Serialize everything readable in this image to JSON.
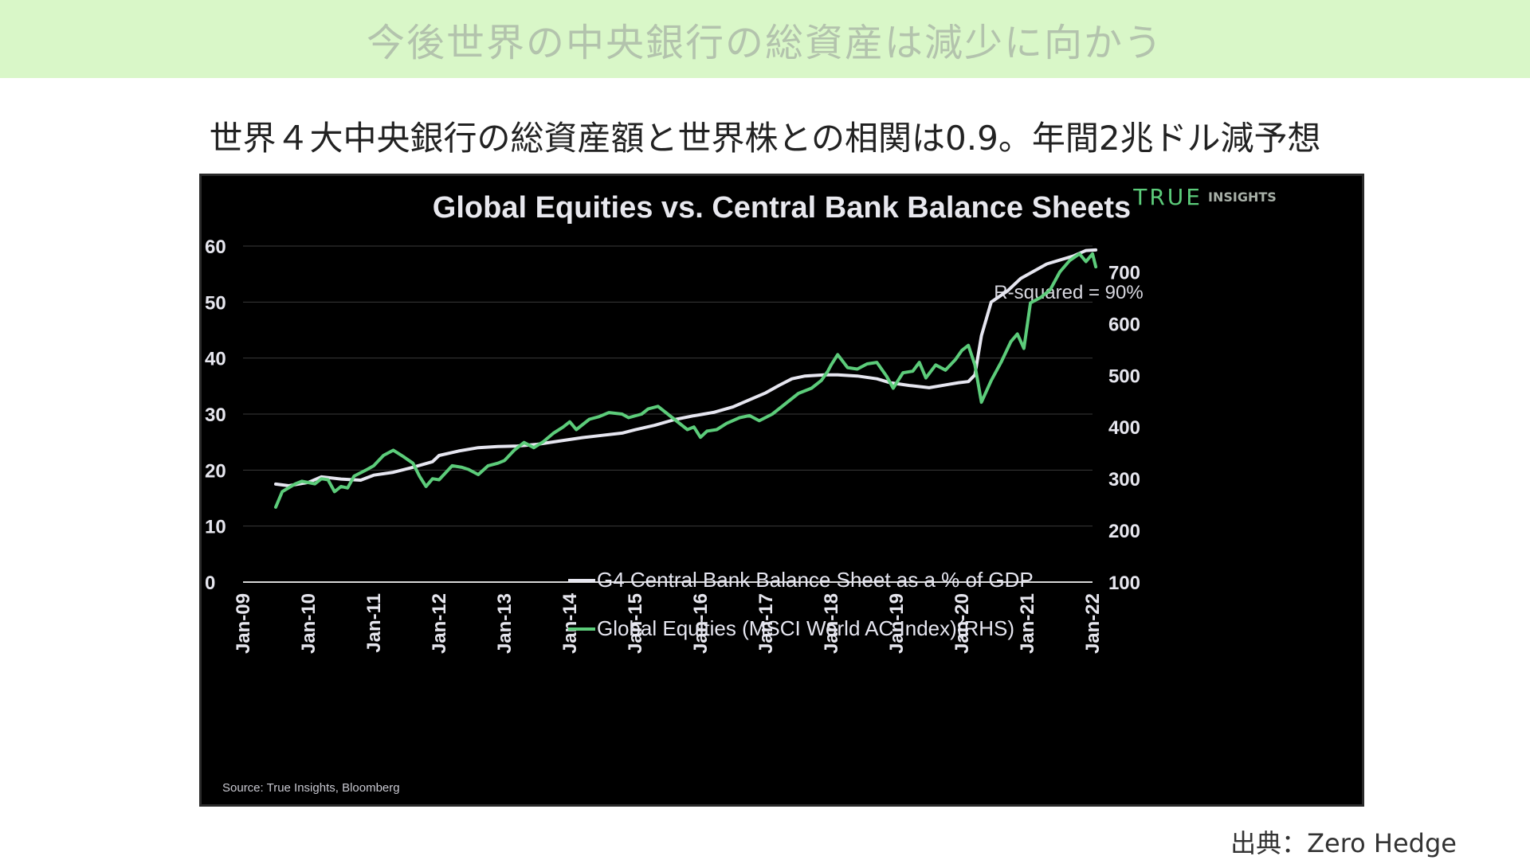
{
  "header": {
    "banner_title": "今後世界の中央銀行の総資産は減少に向かう",
    "subtitle": "世界４大中央銀行の総資産額と世界株との相関は0.9。年間2兆ドル減予想"
  },
  "footer": {
    "credit": "出典：Zero Hedge"
  },
  "colors": {
    "banner_bg": "#d9f7c8",
    "chart_bg": "#000000",
    "balance_sheet_line": "#e6e6f0",
    "equities_line": "#5ccc7a",
    "brand": "#5ccc7a"
  },
  "chart_data": {
    "type": "line",
    "title": "Global Equities vs. Central Bank Balance Sheets",
    "brand": {
      "word": "TRUE",
      "suffix": "INSIGHTS"
    },
    "annotation": "R-squared = 90%",
    "source": "Source: True Insights, Bloomberg",
    "x_tick_labels": [
      "Jan-09",
      "Jan-10",
      "Jan-11",
      "Jan-12",
      "Jan-13",
      "Jan-14",
      "Jan-15",
      "Jan-16",
      "Jan-17",
      "Jan-18",
      "Jan-19",
      "Jan-20",
      "Jan-21",
      "Jan-22"
    ],
    "x_range": [
      2009.0,
      2022.0
    ],
    "left_axis": {
      "ylim": [
        0,
        60
      ],
      "ticks": [
        "0",
        "10",
        "20",
        "30",
        "40",
        "50",
        "60"
      ]
    },
    "right_axis": {
      "ylim": [
        100,
        750
      ],
      "ticks": [
        "100",
        "200",
        "300",
        "400",
        "500",
        "600",
        "700"
      ]
    },
    "grid": true,
    "legend_position": "bottom-center",
    "series": [
      {
        "name": "G4 Central Bank Balance Sheet as a % of GDP",
        "axis": "left",
        "x": [
          2009.5,
          2009.7,
          2010.0,
          2010.2,
          2010.5,
          2010.8,
          2011.0,
          2011.3,
          2011.6,
          2011.9,
          2012.0,
          2012.3,
          2012.6,
          2012.9,
          2013.2,
          2013.5,
          2013.9,
          2014.2,
          2014.5,
          2014.8,
          2015.0,
          2015.3,
          2015.6,
          2015.9,
          2016.2,
          2016.5,
          2016.8,
          2017.0,
          2017.2,
          2017.4,
          2017.6,
          2017.9,
          2018.1,
          2018.4,
          2018.7,
          2018.9,
          2019.2,
          2019.5,
          2019.8,
          2019.95,
          2020.1,
          2020.2,
          2020.3,
          2020.45,
          2020.7,
          2020.9,
          2021.1,
          2021.3,
          2021.5,
          2021.7,
          2021.9,
          2022.05
        ],
        "values": [
          17.5,
          17.2,
          17.8,
          18.8,
          18.4,
          18.2,
          19.1,
          19.6,
          20.5,
          21.5,
          22.6,
          23.4,
          24.0,
          24.2,
          24.3,
          24.6,
          25.3,
          25.8,
          26.2,
          26.6,
          27.2,
          28.0,
          29.0,
          29.7,
          30.3,
          31.3,
          32.8,
          33.8,
          35.1,
          36.3,
          36.8,
          37.0,
          37.0,
          36.8,
          36.3,
          35.6,
          35.1,
          34.7,
          35.3,
          35.6,
          35.8,
          37.0,
          44.0,
          50.0,
          52.0,
          54.2,
          55.5,
          56.8,
          57.5,
          58.2,
          59.2,
          59.3
        ]
      },
      {
        "name": "Global Equities (MSCI World AC Index)(RHS)",
        "axis": "right",
        "x": [
          2009.5,
          2009.6,
          2009.8,
          2009.9,
          2010.1,
          2010.2,
          2010.3,
          2010.4,
          2010.5,
          2010.6,
          2010.7,
          2010.9,
          2011.0,
          2011.15,
          2011.3,
          2011.45,
          2011.6,
          2011.7,
          2011.8,
          2011.9,
          2012.0,
          2012.2,
          2012.35,
          2012.45,
          2012.6,
          2012.75,
          2012.9,
          2013.0,
          2013.15,
          2013.3,
          2013.45,
          2013.6,
          2013.75,
          2013.9,
          2014.0,
          2014.1,
          2014.3,
          2014.45,
          2014.6,
          2014.8,
          2014.9,
          2015.1,
          2015.2,
          2015.35,
          2015.5,
          2015.6,
          2015.8,
          2015.9,
          2016.0,
          2016.1,
          2016.25,
          2016.4,
          2016.6,
          2016.75,
          2016.9,
          2017.1,
          2017.3,
          2017.5,
          2017.7,
          2017.85,
          2017.95,
          2018.0,
          2018.1,
          2018.25,
          2018.4,
          2018.55,
          2018.7,
          2018.85,
          2018.95,
          2019.1,
          2019.25,
          2019.35,
          2019.45,
          2019.6,
          2019.75,
          2019.9,
          2020.0,
          2020.1,
          2020.2,
          2020.3,
          2020.45,
          2020.6,
          2020.75,
          2020.85,
          2020.95,
          2021.05,
          2021.2,
          2021.35,
          2021.5,
          2021.65,
          2021.8,
          2021.9,
          2022.0,
          2022.05
        ],
        "values": [
          245,
          275,
          290,
          295,
          290,
          300,
          298,
          275,
          285,
          282,
          305,
          318,
          325,
          345,
          355,
          343,
          330,
          305,
          285,
          300,
          298,
          325,
          322,
          318,
          308,
          325,
          330,
          335,
          355,
          370,
          360,
          372,
          388,
          400,
          410,
          395,
          415,
          420,
          428,
          425,
          418,
          425,
          435,
          440,
          425,
          415,
          395,
          400,
          380,
          392,
          395,
          407,
          418,
          422,
          412,
          425,
          445,
          465,
          475,
          490,
          508,
          520,
          540,
          515,
          512,
          522,
          525,
          498,
          475,
          505,
          508,
          525,
          495,
          520,
          510,
          530,
          548,
          558,
          520,
          448,
          490,
          525,
          565,
          580,
          552,
          640,
          650,
          665,
          700,
          722,
          735,
          720,
          735,
          710
        ]
      }
    ]
  }
}
